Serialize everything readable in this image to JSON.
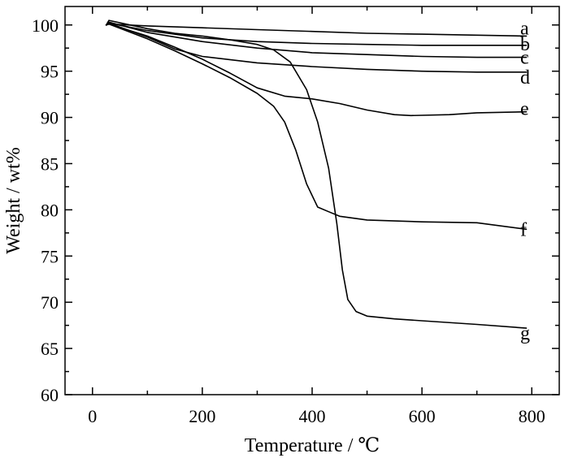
{
  "chart_data": {
    "type": "line",
    "xlabel": "Temperature / ℃",
    "ylabel": "Weight / wt%",
    "xlim": [
      -50,
      850
    ],
    "ylim": [
      60,
      102
    ],
    "xticks": [
      0,
      200,
      400,
      600,
      800
    ],
    "yticks": [
      60,
      65,
      70,
      75,
      80,
      85,
      90,
      95,
      100
    ],
    "grid": false,
    "legend": "none",
    "series": [
      {
        "name": "a",
        "x": [
          25,
          30,
          100,
          200,
          300,
          400,
          500,
          600,
          700,
          790
        ],
        "y": [
          100,
          100.1,
          99.9,
          99.7,
          99.5,
          99.3,
          99.1,
          99.0,
          98.9,
          98.8
        ]
      },
      {
        "name": "b",
        "x": [
          25,
          30,
          100,
          200,
          300,
          400,
          500,
          600,
          700,
          790
        ],
        "y": [
          100,
          100.2,
          99.4,
          98.6,
          98.2,
          98.0,
          97.9,
          97.8,
          97.8,
          97.8
        ]
      },
      {
        "name": "c",
        "x": [
          25,
          30,
          100,
          200,
          300,
          400,
          500,
          600,
          700,
          790
        ],
        "y": [
          100,
          100.3,
          99.2,
          98.2,
          97.5,
          97.0,
          96.8,
          96.6,
          96.5,
          96.5
        ]
      },
      {
        "name": "d",
        "x": [
          25,
          30,
          100,
          150,
          200,
          300,
          400,
          500,
          600,
          700,
          790
        ],
        "y": [
          100,
          100.2,
          98.7,
          97.4,
          96.6,
          95.9,
          95.5,
          95.2,
          95.0,
          94.9,
          94.9
        ]
      },
      {
        "name": "e",
        "x": [
          25,
          30,
          100,
          150,
          200,
          250,
          300,
          350,
          400,
          450,
          500,
          550,
          580,
          650,
          700,
          790
        ],
        "y": [
          100,
          100.1,
          98.8,
          97.6,
          96.3,
          94.8,
          93.2,
          92.3,
          92.0,
          91.5,
          90.8,
          90.3,
          90.2,
          90.3,
          90.5,
          90.6
        ]
      },
      {
        "name": "f",
        "x": [
          25,
          30,
          100,
          150,
          200,
          250,
          300,
          330,
          350,
          370,
          390,
          410,
          430,
          450,
          500,
          600,
          700,
          790
        ],
        "y": [
          100,
          100.1,
          98.5,
          97.2,
          95.8,
          94.3,
          92.6,
          91.2,
          89.5,
          86.5,
          82.8,
          80.3,
          79.8,
          79.3,
          78.9,
          78.7,
          78.6,
          77.9
        ]
      },
      {
        "name": "g",
        "x": [
          25,
          30,
          100,
          150,
          200,
          250,
          300,
          330,
          360,
          390,
          410,
          430,
          445,
          455,
          465,
          480,
          500,
          550,
          600,
          700,
          790
        ],
        "y": [
          100,
          100.5,
          99.6,
          99.1,
          98.8,
          98.4,
          97.9,
          97.3,
          96.0,
          93.0,
          89.5,
          84.5,
          78.5,
          73.5,
          70.3,
          69.0,
          68.5,
          68.2,
          68.0,
          67.6,
          67.2
        ]
      }
    ]
  }
}
